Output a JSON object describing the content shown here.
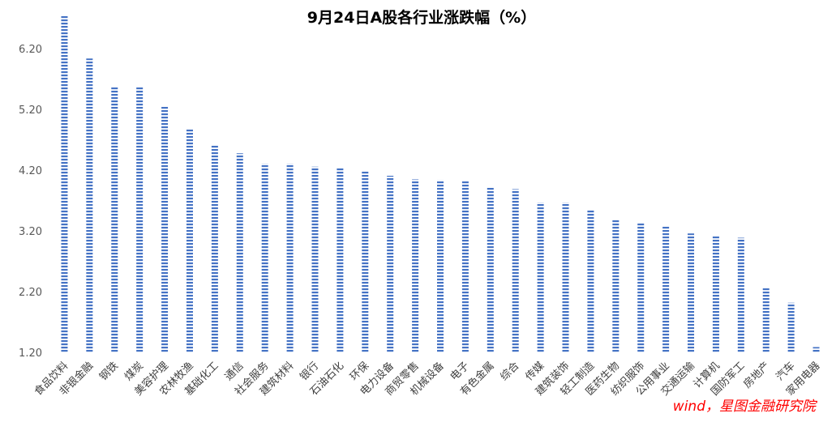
{
  "chart_data": {
    "type": "bar",
    "title": "9月24日A股各行业涨跌幅（%）",
    "xlabel": "",
    "ylabel": "",
    "ylim": [
      1.2,
      6.75
    ],
    "yticks": [
      "1.20",
      "2.20",
      "3.20",
      "4.20",
      "5.20",
      "6.20"
    ],
    "grid": false,
    "legend": "none",
    "bar_color": "#4472c4",
    "categories": [
      "食品饮料",
      "非银金融",
      "钢铁",
      "煤炭",
      "美容护理",
      "农林牧渔",
      "基础化工",
      "通信",
      "社会服务",
      "建筑材料",
      "银行",
      "石油石化",
      "环保",
      "电力设备",
      "商贸零售",
      "机械设备",
      "电子",
      "有色金属",
      "综合",
      "传媒",
      "建筑装饰",
      "轻工制造",
      "医药生物",
      "纺织服饰",
      "公用事业",
      "交通运输",
      "计算机",
      "国防军工",
      "房地产",
      "汽车",
      "家用电器"
    ],
    "values": [
      6.75,
      6.05,
      5.59,
      5.59,
      5.27,
      4.9,
      4.62,
      4.49,
      4.32,
      4.32,
      4.27,
      4.26,
      4.19,
      4.12,
      4.06,
      4.05,
      4.03,
      3.94,
      3.9,
      3.68,
      3.68,
      3.56,
      3.4,
      3.35,
      3.3,
      3.17,
      3.12,
      3.1,
      2.28,
      2.03,
      1.3
    ]
  },
  "watermark": "wind，星图金融研究院"
}
